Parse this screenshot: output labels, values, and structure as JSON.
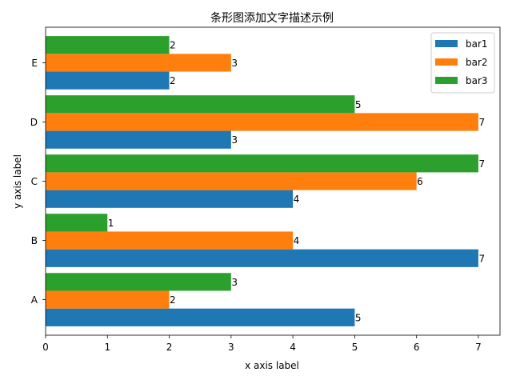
{
  "chart_data": {
    "type": "bar",
    "orientation": "horizontal",
    "title": "条形图添加文字描述示例",
    "xlabel": "x axis label",
    "ylabel": "y axis label",
    "xlim": [
      0,
      7.35
    ],
    "xticks": [
      "0",
      "1",
      "2",
      "3",
      "4",
      "5",
      "6",
      "7"
    ],
    "categories": [
      "A",
      "B",
      "C",
      "D",
      "E"
    ],
    "series": [
      {
        "name": "bar1",
        "color": "#1f77b4",
        "values": [
          5,
          7,
          4,
          3,
          2
        ]
      },
      {
        "name": "bar2",
        "color": "#ff7f0e",
        "values": [
          2,
          4,
          6,
          7,
          3
        ]
      },
      {
        "name": "bar3",
        "color": "#2ca02c",
        "values": [
          3,
          1,
          7,
          5,
          2
        ]
      }
    ],
    "data_labels": true,
    "grid": false,
    "legend_position": "top-right"
  }
}
